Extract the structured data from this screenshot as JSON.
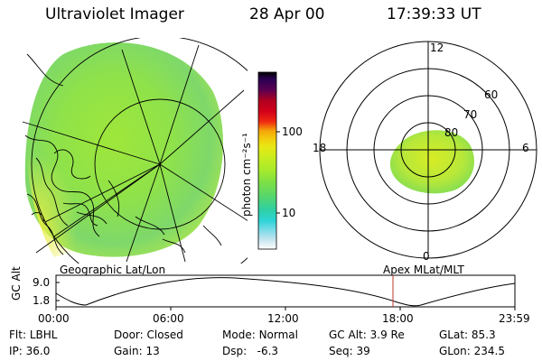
{
  "header": {
    "title": "Ultraviolet Imager",
    "date": "28 Apr 00",
    "time": "17:39:33 UT"
  },
  "colorbar": {
    "unit_label": "photon cm⁻²s⁻¹",
    "ticks": [
      "100",
      "10"
    ],
    "colors": [
      "#000000",
      "#2a0052",
      "#3b006a",
      "#5a0052",
      "#8a0036",
      "#b0001f",
      "#d2001a",
      "#ef2a12",
      "#f05a10",
      "#f5a30a",
      "#f4c80d",
      "#e9e814",
      "#c9ec1f",
      "#a9eb2a",
      "#7ee045",
      "#57d66a",
      "#2ed0a6",
      "#2ed4d8",
      "#86dcea",
      "#c9e6ef",
      "#ffffff"
    ]
  },
  "left_map": {
    "label": "Geographic Lat/Lon"
  },
  "right_map": {
    "label": "Apex MLat/MLT",
    "mlt_labels": {
      "top": "12",
      "left": "18",
      "right": "6",
      "bottom": "0"
    },
    "lat_labels": [
      "60",
      "70",
      "80"
    ]
  },
  "timeline": {
    "axis_label": "GC Alt",
    "y_ticks": [
      "9.0",
      "1.8"
    ],
    "x_ticks": [
      "00:00",
      "06:00",
      "12:00",
      "18:00",
      "23:59"
    ],
    "marker_time": "17:39",
    "marker_color": "#c0392b"
  },
  "info": {
    "flt_label": "Flt:",
    "flt_value": "LBHL",
    "ip_label": "IP:",
    "ip_value": "36.0",
    "door_label": "Door:",
    "door_value": "Closed",
    "gain_label": "Gain:",
    "gain_value": "13",
    "mode_label": "Mode:",
    "mode_value": "Normal",
    "dsp_label": "Dsp:",
    "dsp_value": "-6.3",
    "gcalt_label": "GC Alt:",
    "gcalt_value": "3.9 Re",
    "seq_label": "Seq:",
    "seq_value": "39",
    "glat_label": "GLat:",
    "glat_value": "85.3",
    "glon_label": "GLon:",
    "glon_value": "234.5"
  }
}
